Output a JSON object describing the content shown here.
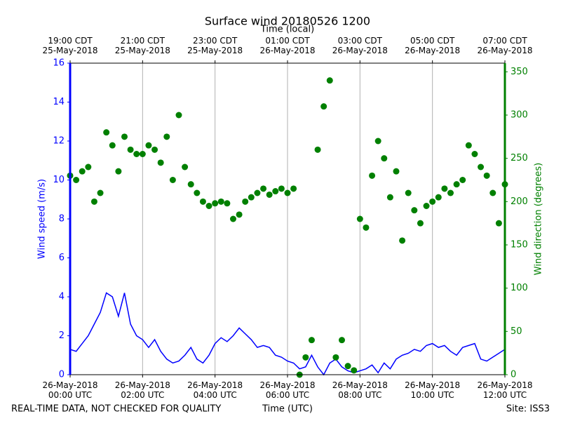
{
  "chart_data": {
    "type": "line+scatter",
    "title": "Surface wind 20180526 1200",
    "x2_label": "Time (local)",
    "xlabel": "Time (UTC)",
    "ylabel": "Wind speed (m/s)",
    "y2label": "Wind direction (degrees)",
    "note_left": "REAL-TIME DATA, NOT CHECKED FOR QUALITY",
    "note_right": "Site: ISS3",
    "grid": "x",
    "xlim": [
      "2018-05-26T00:00",
      "2018-05-26T12:00"
    ],
    "xticks": [
      {
        "value": "2018-05-26T00:00",
        "label": "26-May-2018\n00:00 UTC"
      },
      {
        "value": "2018-05-26T02:00",
        "label": "26-May-2018\n02:00 UTC"
      },
      {
        "value": "2018-05-26T04:00",
        "label": "26-May-2018\n04:00 UTC"
      },
      {
        "value": "2018-05-26T06:00",
        "label": "26-May-2018\n06:00 UTC"
      },
      {
        "value": "2018-05-26T08:00",
        "label": "26-May-2018\n08:00 UTC"
      },
      {
        "value": "2018-05-26T10:00",
        "label": "26-May-2018\n10:00 UTC"
      },
      {
        "value": "2018-05-26T12:00",
        "label": "26-May-2018\n12:00 UTC"
      }
    ],
    "x2ticks": [
      {
        "value": "2018-05-26T00:00",
        "label": "19:00 CDT\n25-May-2018"
      },
      {
        "value": "2018-05-26T02:00",
        "label": "21:00 CDT\n25-May-2018"
      },
      {
        "value": "2018-05-26T04:00",
        "label": "23:00 CDT\n25-May-2018"
      },
      {
        "value": "2018-05-26T06:00",
        "label": "01:00 CDT\n26-May-2018"
      },
      {
        "value": "2018-05-26T08:00",
        "label": "03:00 CDT\n26-May-2018"
      },
      {
        "value": "2018-05-26T10:00",
        "label": "05:00 CDT\n26-May-2018"
      },
      {
        "value": "2018-05-26T12:00",
        "label": "07:00 CDT\n26-May-2018"
      }
    ],
    "ylim": [
      0,
      16
    ],
    "yticks": [
      0,
      2,
      4,
      6,
      8,
      10,
      12,
      14,
      16
    ],
    "y2lim": [
      0,
      360
    ],
    "y2ticks": [
      0,
      50,
      100,
      150,
      200,
      250,
      300,
      350
    ],
    "x": [
      "2018-05-26T00:00",
      "2018-05-26T00:10",
      "2018-05-26T00:20",
      "2018-05-26T00:30",
      "2018-05-26T00:40",
      "2018-05-26T00:50",
      "2018-05-26T01:00",
      "2018-05-26T01:10",
      "2018-05-26T01:20",
      "2018-05-26T01:30",
      "2018-05-26T01:40",
      "2018-05-26T01:50",
      "2018-05-26T02:00",
      "2018-05-26T02:10",
      "2018-05-26T02:20",
      "2018-05-26T02:30",
      "2018-05-26T02:40",
      "2018-05-26T02:50",
      "2018-05-26T03:00",
      "2018-05-26T03:10",
      "2018-05-26T03:20",
      "2018-05-26T03:30",
      "2018-05-26T03:40",
      "2018-05-26T03:50",
      "2018-05-26T04:00",
      "2018-05-26T04:10",
      "2018-05-26T04:20",
      "2018-05-26T04:30",
      "2018-05-26T04:40",
      "2018-05-26T04:50",
      "2018-05-26T05:00",
      "2018-05-26T05:10",
      "2018-05-26T05:20",
      "2018-05-26T05:30",
      "2018-05-26T05:40",
      "2018-05-26T05:50",
      "2018-05-26T06:00",
      "2018-05-26T06:10",
      "2018-05-26T06:20",
      "2018-05-26T06:30",
      "2018-05-26T06:40",
      "2018-05-26T06:50",
      "2018-05-26T07:00",
      "2018-05-26T07:10",
      "2018-05-26T07:20",
      "2018-05-26T07:30",
      "2018-05-26T07:40",
      "2018-05-26T07:50",
      "2018-05-26T08:00",
      "2018-05-26T08:10",
      "2018-05-26T08:20",
      "2018-05-26T08:30",
      "2018-05-26T08:40",
      "2018-05-26T08:50",
      "2018-05-26T09:00",
      "2018-05-26T09:10",
      "2018-05-26T09:20",
      "2018-05-26T09:30",
      "2018-05-26T09:40",
      "2018-05-26T09:50",
      "2018-05-26T10:00",
      "2018-05-26T10:10",
      "2018-05-26T10:20",
      "2018-05-26T10:30",
      "2018-05-26T10:40",
      "2018-05-26T10:50",
      "2018-05-26T11:00",
      "2018-05-26T11:10",
      "2018-05-26T11:20",
      "2018-05-26T11:30",
      "2018-05-26T11:40",
      "2018-05-26T11:50",
      "2018-05-26T12:00"
    ],
    "series": [
      {
        "name": "Wind speed",
        "type": "line",
        "color": "#0000ff",
        "axis": "y",
        "values": [
          1.3,
          1.2,
          1.6,
          2.0,
          2.6,
          3.2,
          4.2,
          4.0,
          3.0,
          4.2,
          2.6,
          2.0,
          1.8,
          1.4,
          1.8,
          1.2,
          0.8,
          0.6,
          0.7,
          1.0,
          1.4,
          0.8,
          0.6,
          1.0,
          1.6,
          1.9,
          1.7,
          2.0,
          2.4,
          2.1,
          1.8,
          1.4,
          1.5,
          1.4,
          1.0,
          0.9,
          0.7,
          0.6,
          0.3,
          0.4,
          1.0,
          0.4,
          0.0,
          0.6,
          0.8,
          0.4,
          0.2,
          0.1,
          0.2,
          0.3,
          0.5,
          0.1,
          0.6,
          0.3,
          0.8,
          1.0,
          1.1,
          1.3,
          1.2,
          1.5,
          1.6,
          1.4,
          1.5,
          1.2,
          1.0,
          1.4,
          1.5,
          1.6,
          0.8,
          0.7,
          0.9,
          1.1,
          1.3
        ]
      },
      {
        "name": "Wind direction",
        "type": "scatter",
        "color": "#008000",
        "axis": "y2",
        "values": [
          230,
          225,
          235,
          240,
          200,
          210,
          280,
          265,
          235,
          275,
          260,
          255,
          255,
          265,
          260,
          245,
          275,
          225,
          300,
          240,
          220,
          210,
          200,
          195,
          198,
          200,
          198,
          180,
          185,
          200,
          205,
          210,
          215,
          208,
          212,
          215,
          210,
          215,
          0,
          20,
          40,
          260,
          310,
          340,
          20,
          40,
          10,
          5,
          180,
          170,
          230,
          270,
          250,
          205,
          235,
          155,
          210,
          190,
          175,
          195,
          200,
          205,
          215,
          210,
          220,
          225,
          265,
          255,
          240,
          230,
          210,
          175,
          220
        ]
      }
    ]
  }
}
